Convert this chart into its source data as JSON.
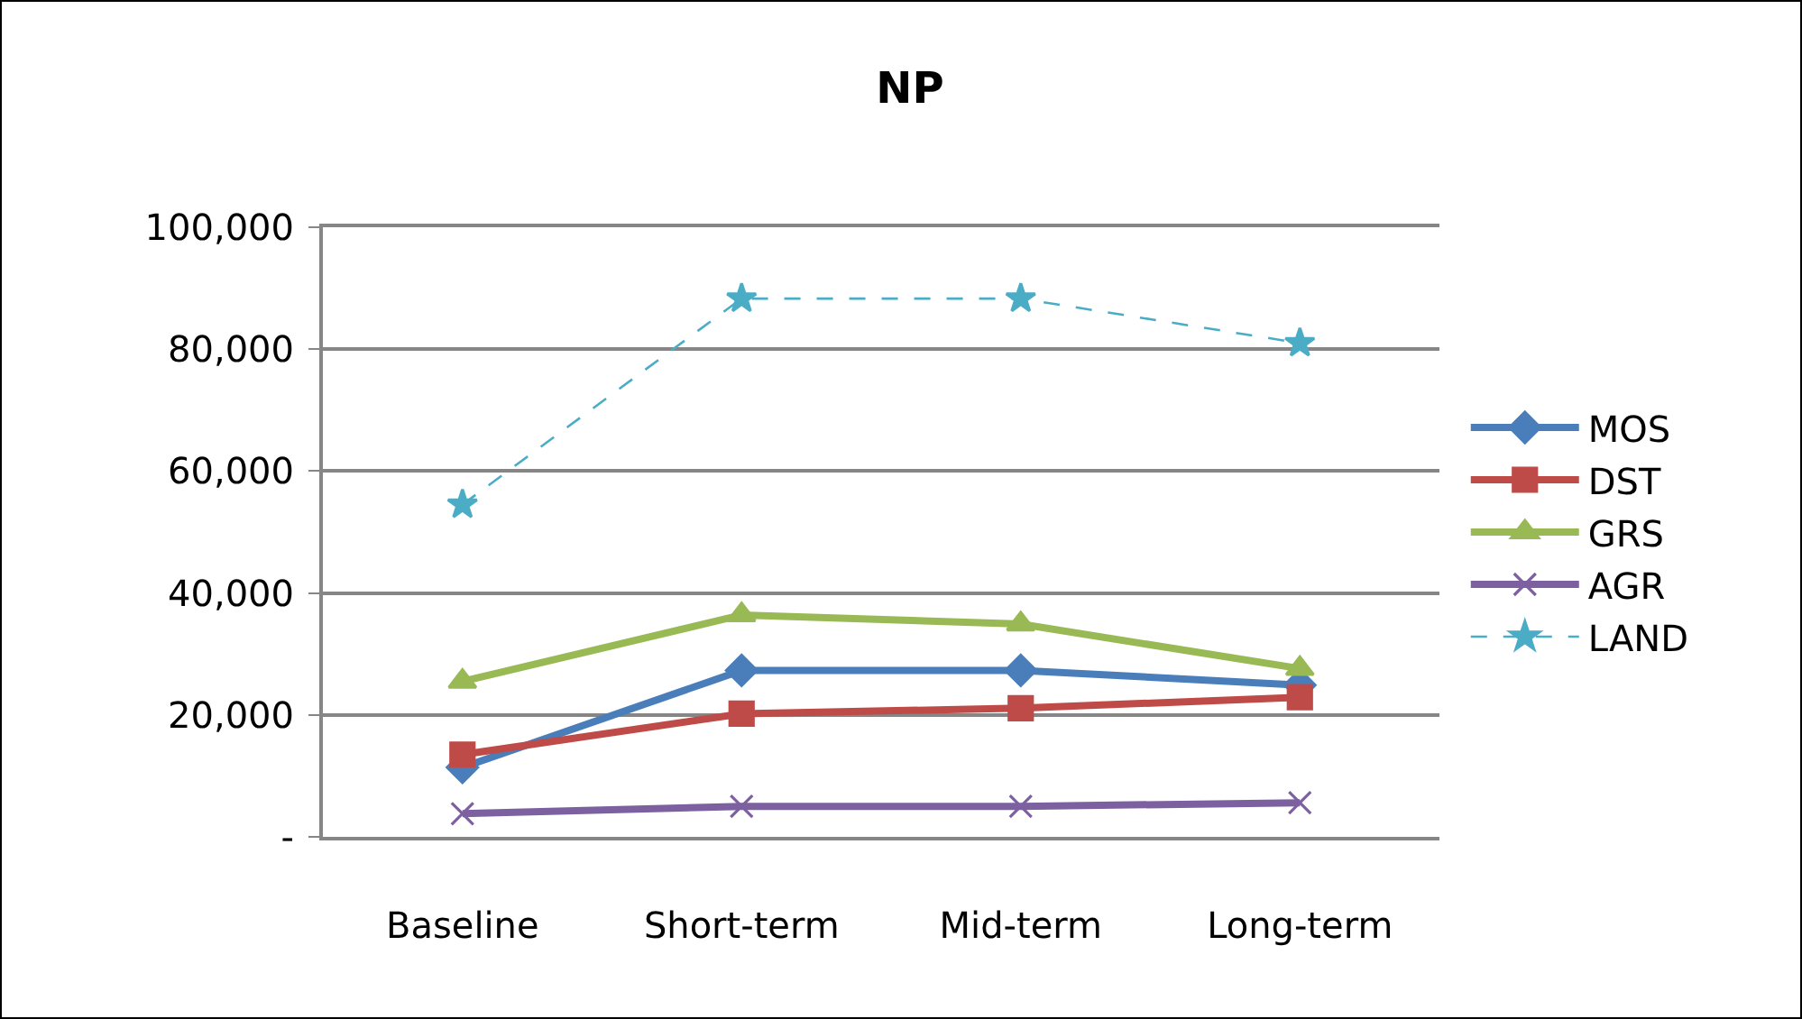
{
  "chart_data": {
    "type": "line",
    "title": "NP",
    "categories": [
      "Baseline",
      "Short-term",
      "Mid-term",
      "Long-term"
    ],
    "series": [
      {
        "name": "MOS",
        "color": "#4a7ebb",
        "marker": "diamond",
        "values": [
          11400,
          27300,
          27300,
          24900
        ]
      },
      {
        "name": "DST",
        "color": "#be4b48",
        "marker": "square",
        "values": [
          13500,
          20200,
          21100,
          22900
        ]
      },
      {
        "name": "GRS",
        "color": "#98b954",
        "marker": "triangle",
        "values": [
          25500,
          36400,
          34900,
          27600
        ]
      },
      {
        "name": "AGR",
        "color": "#7d60a0",
        "marker": "cross",
        "values": [
          3800,
          5000,
          5000,
          5600
        ]
      },
      {
        "name": "LAND",
        "color": "#4bacc6",
        "marker": "star",
        "line_style": "dashed",
        "values": [
          54500,
          88300,
          88300,
          81000
        ]
      }
    ],
    "ylim": [
      0,
      100000
    ],
    "yticks": [
      {
        "value": 0,
        "label": "-"
      },
      {
        "value": 20000,
        "label": "20,000"
      },
      {
        "value": 40000,
        "label": "40,000"
      },
      {
        "value": 60000,
        "label": "60,000"
      },
      {
        "value": 80000,
        "label": "80,000"
      },
      {
        "value": 100000,
        "label": "100,000"
      }
    ],
    "grid": "y",
    "legend": "right"
  }
}
